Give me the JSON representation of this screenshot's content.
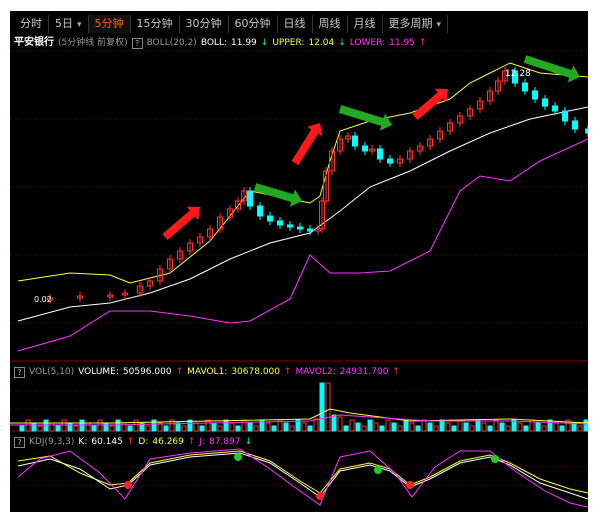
{
  "tabs": [
    {
      "label": "分时",
      "active": false
    },
    {
      "label": "5日",
      "active": false,
      "chevron": "▾"
    },
    {
      "label": "5分钟",
      "active": true
    },
    {
      "label": "15分钟",
      "active": false
    },
    {
      "label": "30分钟",
      "active": false
    },
    {
      "label": "60分钟",
      "active": false
    },
    {
      "label": "日线",
      "active": false
    },
    {
      "label": "周线",
      "active": false
    },
    {
      "label": "月线",
      "active": false
    },
    {
      "label": "更多周期",
      "active": false,
      "chevron": "▾"
    }
  ],
  "main_info": {
    "stock_name": "平安银行",
    "period_note": "(5分钟线 前复权)",
    "help": "?",
    "indicator": "BOLL(20,2)",
    "boll_label": "BOLL:",
    "boll_value": "11.99",
    "boll_arrow": "↓",
    "upper_label": "UPPER:",
    "upper_value": "12.04",
    "upper_arrow": "↓",
    "lower_label": "LOWER:",
    "lower_value": "11.95",
    "lower_arrow": "↑"
  },
  "vol_info": {
    "help": "?",
    "indicator": "VOL(5,10)",
    "volume_label": "VOLUME:",
    "volume_value": "50596.000",
    "volume_arrow": "↑",
    "mavol1_label": "MAVOL1:",
    "mavol1_value": "30678.000",
    "mavol1_arrow": "↑",
    "mavol2_label": "MAVOL2:",
    "mavol2_value": "24931.700",
    "mavol2_arrow": "↑"
  },
  "kdj_info": {
    "help": "?",
    "indicator": "KDJ(9,3,3)",
    "k_label": "K:",
    "k_value": "60.145",
    "k_arrow": "↑",
    "d_label": "D:",
    "d_value": "46.269",
    "d_arrow": "↑",
    "j_label": "J:",
    "j_value": "87.897",
    "j_arrow": "↓"
  },
  "annotations": {
    "high_price": "12.28",
    "low_price": "0.02"
  },
  "colors": {
    "up": "#ff3333",
    "down": "#00ffff",
    "boll": "#ffffff",
    "upper": "#ffff33",
    "lower": "#ff33ff",
    "arrow_up": "#ff1a1a",
    "arrow_right": "#22aa22",
    "cross_green": "#22cc22",
    "cross_red": "#ff2222"
  },
  "chart_data": {
    "type": "candlestick",
    "panels": [
      "BOLL(20,2)",
      "VOL(5,10)",
      "KDJ(9,3,3)"
    ],
    "last_values": {
      "BOLL": 11.99,
      "UPPER": 12.04,
      "LOWER": 11.95,
      "VOLUME": 50596.0,
      "MAVOL1": 30678.0,
      "MAVOL2": 24931.7,
      "K": 60.145,
      "D": 46.269,
      "J": 87.897
    },
    "marked_high": 12.28
  }
}
